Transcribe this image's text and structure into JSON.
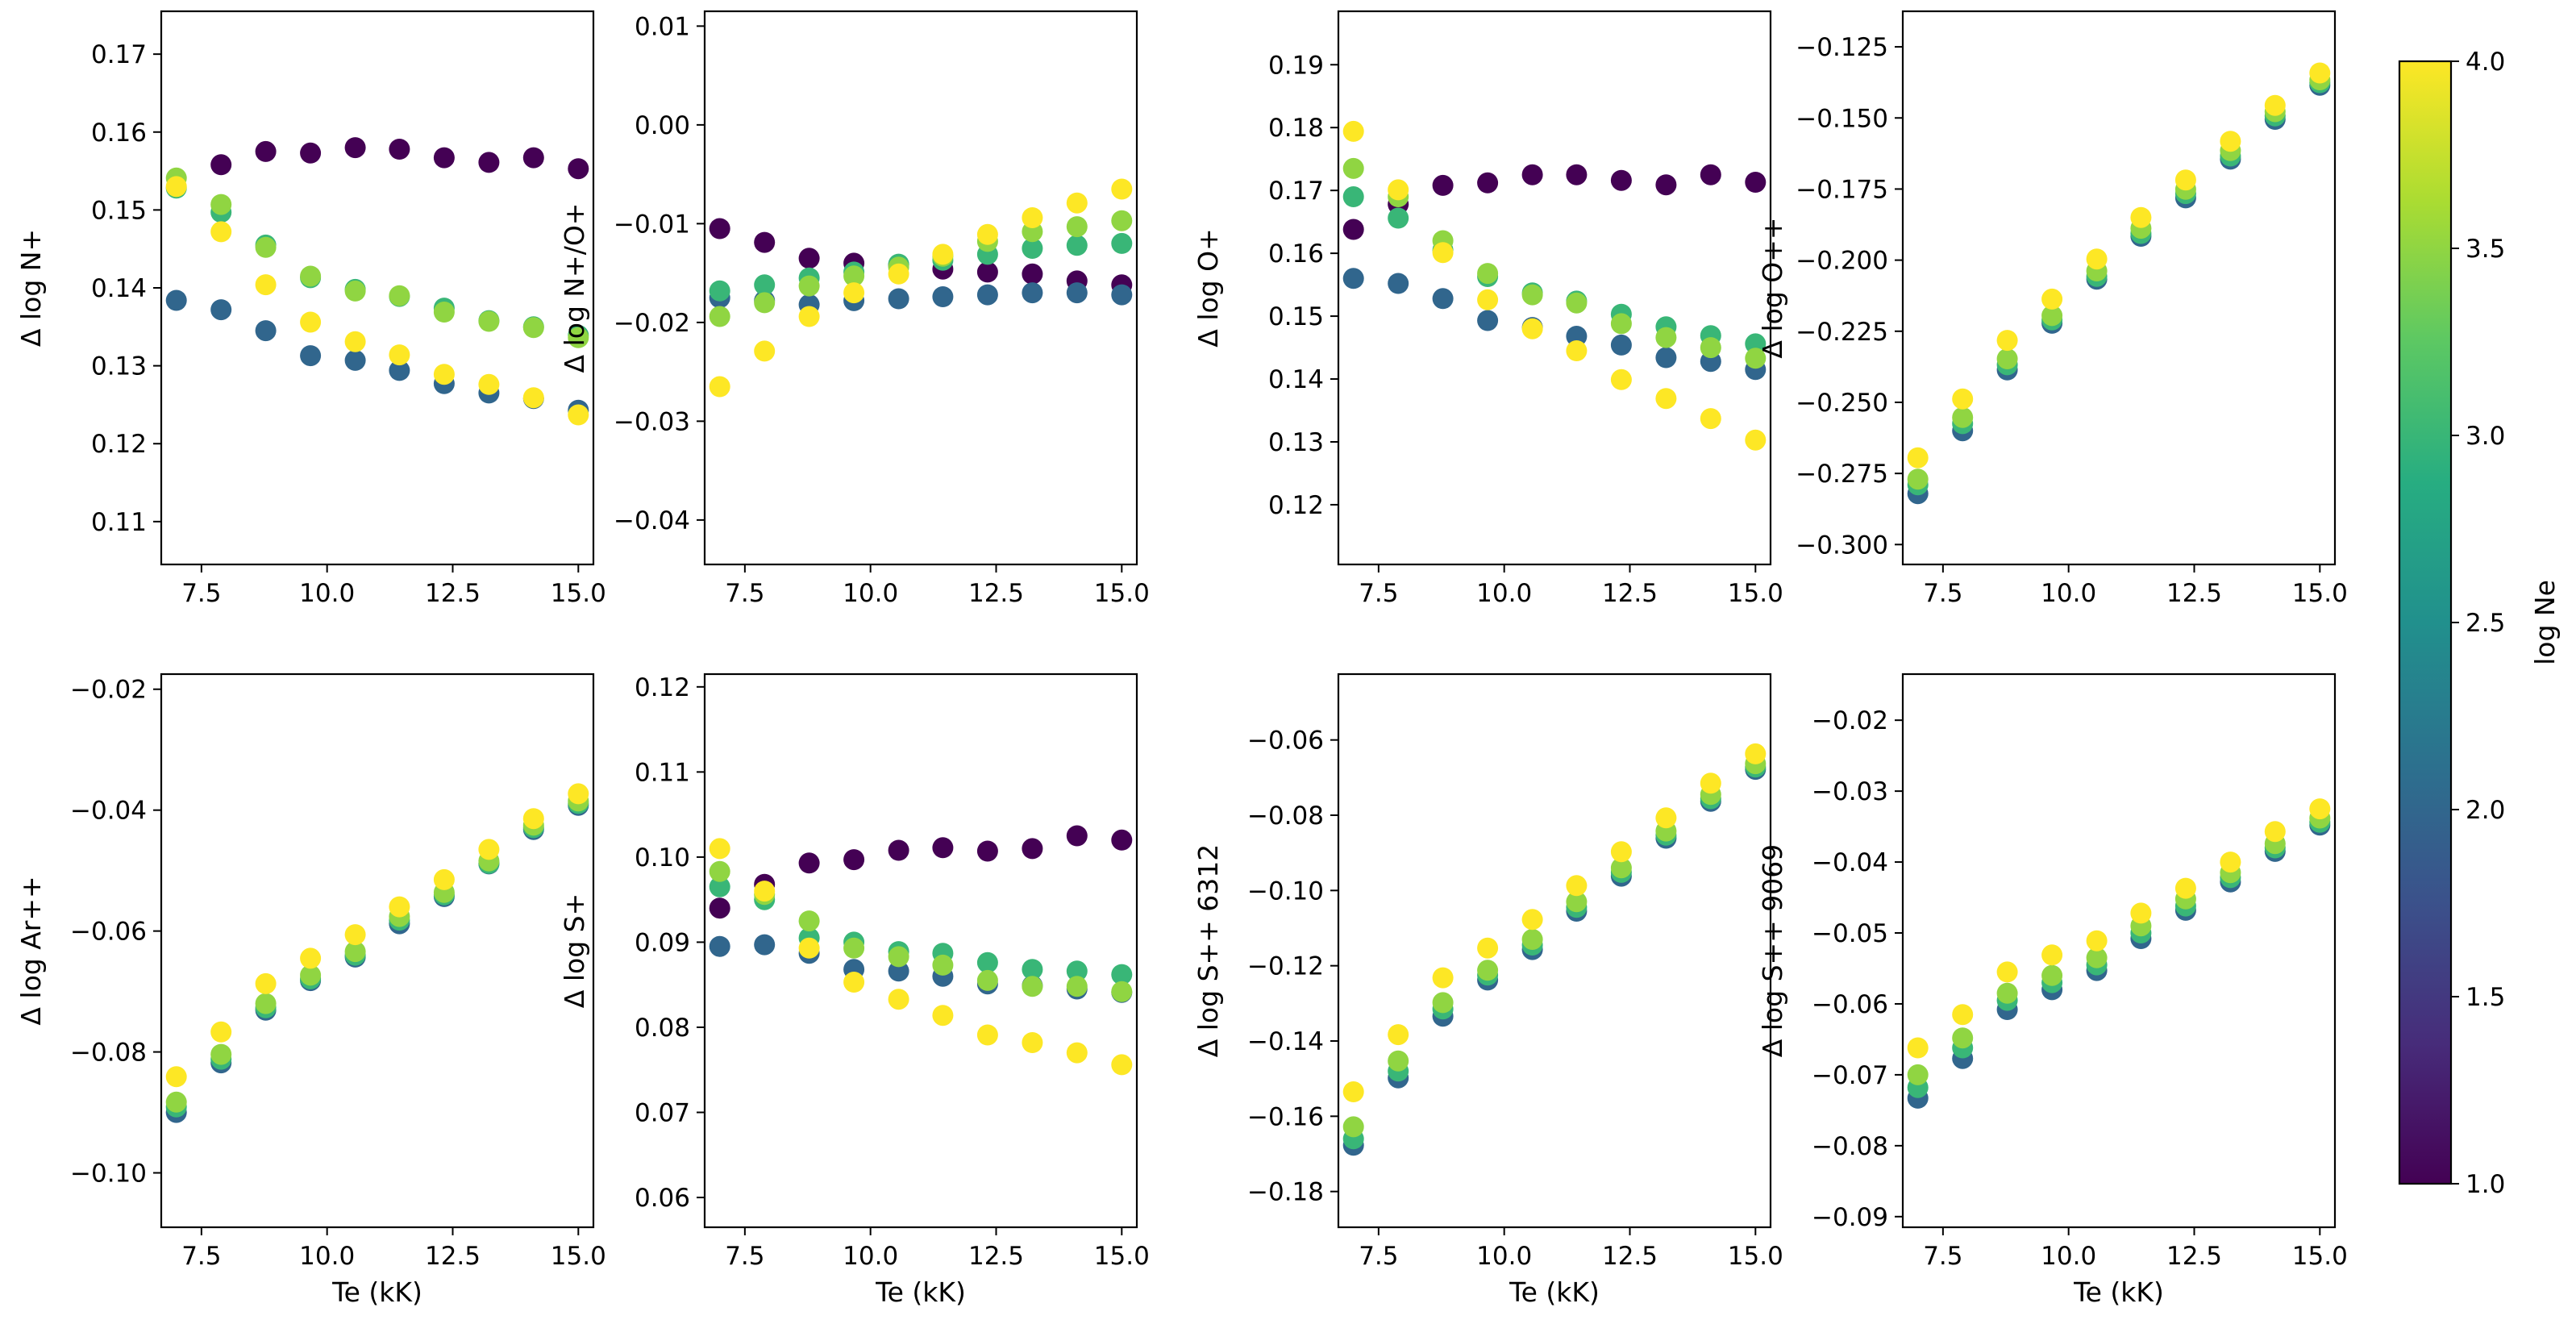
{
  "colormap": {
    "name": "viridis",
    "label": "log Ne",
    "range": [
      1.0,
      4.0
    ],
    "ticks": [
      "1.0",
      "1.5",
      "2.0",
      "2.5",
      "3.0",
      "3.5",
      "4.0"
    ],
    "stops": [
      "#440154",
      "#472c7a",
      "#3b518b",
      "#2c718e",
      "#21908d",
      "#27ad81",
      "#5cc863",
      "#aadc32",
      "#fde725"
    ]
  },
  "series_lne": [
    1,
    2,
    3,
    3.5,
    4
  ],
  "x": [
    7,
    7.89,
    8.78,
    9.67,
    10.56,
    11.44,
    12.33,
    13.22,
    14.11,
    15
  ],
  "chart_data": [
    {
      "type": "scatter",
      "xlabel": "",
      "ylabel": "Δ log N+",
      "xlim": [
        6.7,
        15.3
      ],
      "ylim": [
        0.1045,
        0.1755
      ],
      "xticks": [
        7.5,
        10.0,
        12.5,
        15.0
      ],
      "xtick_labels": [
        "7.5",
        "10.0",
        "12.5",
        "15.0"
      ],
      "yticks": [
        0.11,
        0.12,
        0.13,
        0.14,
        0.15,
        0.16,
        0.17
      ],
      "ytick_labels": [
        "0.11",
        "0.12",
        "0.13",
        "0.14",
        "0.15",
        "0.16",
        "0.17"
      ],
      "series": [
        {
          "lne": 1.0,
          "y": [
            null,
            0.1558,
            0.1575,
            0.1573,
            0.158,
            0.1578,
            0.1567,
            0.1561,
            0.1567,
            0.1553
          ]
        },
        {
          "lne": 2.0,
          "y": [
            0.1384,
            0.1372,
            0.1345,
            0.1313,
            0.1307,
            0.1294,
            0.1277,
            0.1265,
            0.1258,
            0.1243
          ]
        },
        {
          "lne": 3.0,
          "y": [
            0.1528,
            0.1497,
            0.1455,
            0.1413,
            0.1398,
            0.1389,
            0.1374,
            0.1358,
            0.135,
            0.1339
          ]
        },
        {
          "lne": 3.5,
          "y": [
            0.1541,
            0.1507,
            0.1452,
            0.1415,
            0.1396,
            0.139,
            0.1369,
            0.1357,
            0.1349,
            0.1336
          ]
        },
        {
          "lne": 4.0,
          "y": [
            0.153,
            0.1472,
            0.1404,
            0.1356,
            0.1331,
            0.1314,
            0.1289,
            0.1276,
            0.1259,
            0.1237
          ]
        }
      ]
    },
    {
      "type": "scatter",
      "xlabel": "",
      "ylabel": "Δ log N+/O+",
      "xlim": [
        6.7,
        15.3
      ],
      "ylim": [
        -0.0445,
        0.0115
      ],
      "xticks": [
        7.5,
        10.0,
        12.5,
        15.0
      ],
      "xtick_labels": [
        "7.5",
        "10.0",
        "12.5",
        "15.0"
      ],
      "yticks": [
        -0.04,
        -0.03,
        -0.02,
        -0.01,
        0.0,
        0.01
      ],
      "ytick_labels": [
        "−0.04",
        "−0.03",
        "−0.02",
        "−0.01",
        "0.00",
        "0.01"
      ],
      "series": [
        {
          "lne": 1.0,
          "y": [
            -0.0105,
            -0.0119,
            -0.0135,
            -0.014,
            -0.0142,
            -0.0146,
            -0.0149,
            -0.0151,
            -0.0158,
            -0.0162
          ]
        },
        {
          "lne": 2.0,
          "y": [
            -0.0175,
            -0.0178,
            -0.0182,
            -0.0178,
            -0.0176,
            -0.0174,
            -0.0172,
            -0.017,
            -0.017,
            -0.0172
          ]
        },
        {
          "lne": 3.0,
          "y": [
            -0.0168,
            -0.0162,
            -0.0155,
            -0.0149,
            -0.0141,
            -0.0137,
            -0.0131,
            -0.0125,
            -0.0122,
            -0.012
          ]
        },
        {
          "lne": 3.5,
          "y": [
            -0.0194,
            -0.018,
            -0.0163,
            -0.0153,
            -0.0144,
            -0.0133,
            -0.0118,
            -0.0108,
            -0.0103,
            -0.0097
          ]
        },
        {
          "lne": 4.0,
          "y": [
            -0.0265,
            -0.0229,
            -0.0194,
            -0.017,
            -0.0151,
            -0.0131,
            -0.0111,
            -0.0094,
            -0.0079,
            -0.0065
          ]
        }
      ]
    },
    {
      "type": "scatter",
      "xlabel": "",
      "ylabel": "Δ log O+",
      "xlim": [
        6.7,
        15.3
      ],
      "ylim": [
        0.1105,
        0.1985
      ],
      "xticks": [
        7.5,
        10.0,
        12.5,
        15.0
      ],
      "xtick_labels": [
        "7.5",
        "10.0",
        "12.5",
        "15.0"
      ],
      "yticks": [
        0.12,
        0.13,
        0.14,
        0.15,
        0.16,
        0.17,
        0.18,
        0.19
      ],
      "ytick_labels": [
        "0.12",
        "0.13",
        "0.14",
        "0.15",
        "0.16",
        "0.17",
        "0.18",
        "0.19"
      ],
      "series": [
        {
          "lne": 1.0,
          "y": [
            0.1638,
            0.1678,
            0.1708,
            0.1712,
            0.1725,
            0.1725,
            0.1716,
            0.1709,
            0.1725,
            0.1713
          ]
        },
        {
          "lne": 2.0,
          "y": [
            0.156,
            0.1552,
            0.1528,
            0.1493,
            0.1482,
            0.1468,
            0.1454,
            0.1434,
            0.1428,
            0.1415
          ]
        },
        {
          "lne": 3.0,
          "y": [
            0.169,
            0.1656,
            0.1605,
            0.1563,
            0.1537,
            0.1524,
            0.1503,
            0.1483,
            0.1469,
            0.1456
          ]
        },
        {
          "lne": 3.5,
          "y": [
            0.1735,
            0.169,
            0.162,
            0.1568,
            0.1534,
            0.1521,
            0.1488,
            0.1466,
            0.145,
            0.1433
          ]
        },
        {
          "lne": 4.0,
          "y": [
            0.1794,
            0.1701,
            0.1601,
            0.1526,
            0.148,
            0.1445,
            0.1399,
            0.1369,
            0.1337,
            0.1303
          ]
        }
      ]
    },
    {
      "type": "scatter",
      "xlabel": "",
      "ylabel": "Δ log O++",
      "xlim": [
        6.7,
        15.3
      ],
      "ylim": [
        -0.307,
        -0.1125
      ],
      "xticks": [
        7.5,
        10.0,
        12.5,
        15.0
      ],
      "xtick_labels": [
        "7.5",
        "10.0",
        "12.5",
        "15.0"
      ],
      "yticks": [
        -0.3,
        -0.275,
        -0.25,
        -0.225,
        -0.2,
        -0.175,
        -0.15,
        -0.125
      ],
      "ytick_labels": [
        "−0.300",
        "−0.275",
        "−0.250",
        "−0.225",
        "−0.200",
        "−0.175",
        "−0.150",
        "−0.125"
      ],
      "series": [
        {
          "lne": 2.0,
          "y": [
            -0.2821,
            -0.26,
            -0.2386,
            -0.2222,
            -0.2067,
            -0.1916,
            -0.1781,
            -0.1645,
            -0.1505,
            -0.1385
          ]
        },
        {
          "lne": 3.0,
          "y": [
            -0.279,
            -0.2575,
            -0.2368,
            -0.221,
            -0.2057,
            -0.1906,
            -0.1766,
            -0.1634,
            -0.1493,
            -0.1376
          ]
        },
        {
          "lne": 3.5,
          "y": [
            -0.277,
            -0.2553,
            -0.2347,
            -0.2195,
            -0.2038,
            -0.1888,
            -0.1751,
            -0.1615,
            -0.1478,
            -0.1366
          ]
        },
        {
          "lne": 4.0,
          "y": [
            -0.2695,
            -0.2488,
            -0.2282,
            -0.2137,
            -0.1996,
            -0.185,
            -0.1718,
            -0.1582,
            -0.1456,
            -0.1342
          ]
        }
      ]
    },
    {
      "type": "scatter",
      "xlabel": "Te (kK)",
      "ylabel": "Δ log Ar++",
      "xlim": [
        6.7,
        15.3
      ],
      "ylim": [
        -0.109,
        -0.0175
      ],
      "xticks": [
        7.5,
        10.0,
        12.5,
        15.0
      ],
      "xtick_labels": [
        "7.5",
        "10.0",
        "12.5",
        "15.0"
      ],
      "yticks": [
        -0.1,
        -0.08,
        -0.06,
        -0.04,
        -0.02
      ],
      "ytick_labels": [
        "−0.10",
        "−0.08",
        "−0.06",
        "−0.04",
        "−0.02"
      ],
      "series": [
        {
          "lne": 2.0,
          "y": [
            -0.09,
            -0.0818,
            -0.0731,
            -0.0682,
            -0.0643,
            -0.0588,
            -0.0543,
            -0.0489,
            -0.0432,
            -0.0392
          ]
        },
        {
          "lne": 3.0,
          "y": [
            -0.0891,
            -0.0812,
            -0.0727,
            -0.0679,
            -0.064,
            -0.0582,
            -0.054,
            -0.0488,
            -0.0429,
            -0.0389
          ]
        },
        {
          "lne": 3.5,
          "y": [
            -0.0883,
            -0.0804,
            -0.072,
            -0.0673,
            -0.0634,
            -0.0576,
            -0.0536,
            -0.0484,
            -0.0425,
            -0.0385
          ]
        },
        {
          "lne": 4.0,
          "y": [
            -0.0841,
            -0.0767,
            -0.0687,
            -0.0645,
            -0.0606,
            -0.056,
            -0.0515,
            -0.0465,
            -0.0414,
            -0.0373
          ]
        }
      ]
    },
    {
      "type": "scatter",
      "xlabel": "Te (kK)",
      "ylabel": "Δ log S+",
      "xlim": [
        6.7,
        15.3
      ],
      "ylim": [
        0.0565,
        0.1215
      ],
      "xticks": [
        7.5,
        10.0,
        12.5,
        15.0
      ],
      "xtick_labels": [
        "7.5",
        "10.0",
        "12.5",
        "15.0"
      ],
      "yticks": [
        0.06,
        0.07,
        0.08,
        0.09,
        0.1,
        0.11,
        0.12
      ],
      "ytick_labels": [
        "0.06",
        "0.07",
        "0.08",
        "0.09",
        "0.10",
        "0.11",
        "0.12"
      ],
      "series": [
        {
          "lne": 1.0,
          "y": [
            0.094,
            0.0968,
            0.0993,
            0.0997,
            0.1008,
            0.1011,
            0.1007,
            0.101,
            0.1025,
            0.102
          ]
        },
        {
          "lne": 2.0,
          "y": [
            0.0895,
            0.0897,
            0.0887,
            0.0868,
            0.0866,
            0.086,
            0.0851,
            0.0849,
            0.0845,
            0.0841
          ]
        },
        {
          "lne": 3.0,
          "y": [
            0.0965,
            0.095,
            0.0905,
            0.09,
            0.0889,
            0.0887,
            0.0876,
            0.0868,
            0.0866,
            0.0862
          ]
        },
        {
          "lne": 3.5,
          "y": [
            0.0983,
            0.0956,
            0.0925,
            0.0893,
            0.0883,
            0.0873,
            0.0855,
            0.0848,
            0.0848,
            0.0842
          ]
        },
        {
          "lne": 4.0,
          "y": [
            0.101,
            0.096,
            0.0893,
            0.0853,
            0.0833,
            0.0814,
            0.0791,
            0.0782,
            0.077,
            0.0756
          ]
        }
      ]
    },
    {
      "type": "scatter",
      "xlabel": "Te (kK)",
      "ylabel": "Δ log S++ 6312",
      "xlim": [
        6.7,
        15.3
      ],
      "ylim": [
        -0.1895,
        -0.0425
      ],
      "xticks": [
        7.5,
        10.0,
        12.5,
        15.0
      ],
      "xtick_labels": [
        "7.5",
        "10.0",
        "12.5",
        "15.0"
      ],
      "yticks": [
        -0.18,
        -0.16,
        -0.14,
        -0.12,
        -0.1,
        -0.08,
        -0.06
      ],
      "ytick_labels": [
        "−0.18",
        "−0.16",
        "−0.14",
        "−0.12",
        "−0.10",
        "−0.08",
        "−0.06"
      ],
      "series": [
        {
          "lne": 2.0,
          "y": [
            -0.1677,
            -0.1498,
            -0.1334,
            -0.1238,
            -0.1157,
            -0.1055,
            -0.0962,
            -0.0861,
            -0.0763,
            -0.0678
          ]
        },
        {
          "lne": 3.0,
          "y": [
            -0.166,
            -0.148,
            -0.1315,
            -0.1225,
            -0.1145,
            -0.1045,
            -0.0952,
            -0.0853,
            -0.0756,
            -0.0672
          ]
        },
        {
          "lne": 3.5,
          "y": [
            -0.1628,
            -0.1453,
            -0.1298,
            -0.1212,
            -0.113,
            -0.103,
            -0.094,
            -0.0842,
            -0.0745,
            -0.0663
          ]
        },
        {
          "lne": 4.0,
          "y": [
            -0.1535,
            -0.1383,
            -0.1232,
            -0.1153,
            -0.1077,
            -0.0987,
            -0.0897,
            -0.0807,
            -0.0715,
            -0.0637
          ]
        }
      ]
    },
    {
      "type": "scatter",
      "xlabel": "Te (kK)",
      "ylabel": "Δ log S++ 9069",
      "xlim": [
        6.7,
        15.3
      ],
      "ylim": [
        -0.0915,
        -0.0135
      ],
      "xticks": [
        7.5,
        10.0,
        12.5,
        15.0
      ],
      "xtick_labels": [
        "7.5",
        "10.0",
        "12.5",
        "15.0"
      ],
      "yticks": [
        -0.09,
        -0.08,
        -0.07,
        -0.06,
        -0.05,
        -0.04,
        -0.03,
        -0.02
      ],
      "ytick_labels": [
        "−0.09",
        "−0.08",
        "−0.07",
        "−0.06",
        "−0.05",
        "−0.04",
        "−0.03",
        "−0.02"
      ],
      "series": [
        {
          "lne": 2.0,
          "y": [
            -0.0733,
            -0.0677,
            -0.0608,
            -0.058,
            -0.0553,
            -0.0508,
            -0.0468,
            -0.0428,
            -0.0385,
            -0.0348
          ]
        },
        {
          "lne": 3.0,
          "y": [
            -0.0718,
            -0.0662,
            -0.0595,
            -0.057,
            -0.0545,
            -0.05,
            -0.0462,
            -0.0422,
            -0.038,
            -0.0344
          ]
        },
        {
          "lne": 3.5,
          "y": [
            -0.07,
            -0.0648,
            -0.0585,
            -0.056,
            -0.0535,
            -0.049,
            -0.0452,
            -0.0415,
            -0.0374,
            -0.0338
          ]
        },
        {
          "lne": 4.0,
          "y": [
            -0.0662,
            -0.0615,
            -0.0555,
            -0.0531,
            -0.0511,
            -0.0472,
            -0.0437,
            -0.04,
            -0.0357,
            -0.0325
          ]
        }
      ]
    }
  ]
}
